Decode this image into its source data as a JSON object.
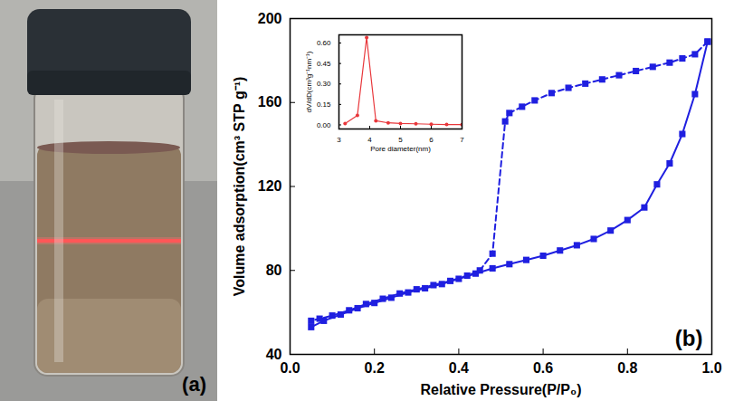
{
  "photo": {
    "label": "(a)"
  },
  "chart_data": [
    {
      "type": "line",
      "annotation": "(b)",
      "x_label": "Relative Pressure(P/P₀)",
      "y_label": "Volume adsorption(cm³ STP g⁻¹)",
      "xlim": [
        0,
        1
      ],
      "xticks": [
        {
          "value": 0,
          "label": "0.0"
        },
        0.2,
        0.4,
        0.6,
        0.8,
        {
          "value": 1,
          "label": "1.0"
        }
      ],
      "ylim": [
        40,
        200
      ],
      "yticks": [
        40,
        80,
        120,
        160,
        200
      ],
      "marker": "square",
      "series": [
        {
          "color": "#1f1fe0",
          "line_style": "solid",
          "x": [
            0.05,
            0.08,
            0.12,
            0.16,
            0.2,
            0.24,
            0.28,
            0.32,
            0.36,
            0.4,
            0.44,
            0.48,
            0.52,
            0.56,
            0.6,
            0.64,
            0.68,
            0.72,
            0.76,
            0.8,
            0.84,
            0.87,
            0.9,
            0.93,
            0.96,
            0.99
          ],
          "values": [
            53,
            56,
            59,
            62,
            64.5,
            67,
            69.5,
            71.5,
            73.5,
            76,
            78.5,
            81,
            83,
            85,
            87,
            89.5,
            92,
            95,
            99,
            104,
            110,
            121,
            131,
            145,
            164,
            189
          ]
        },
        {
          "color": "#1f1fe0",
          "line_style": "dashed",
          "x": [
            0.99,
            0.96,
            0.93,
            0.9,
            0.86,
            0.82,
            0.78,
            0.74,
            0.7,
            0.66,
            0.62,
            0.58,
            0.55,
            0.52,
            0.51,
            0.48,
            0.45,
            0.42,
            0.38,
            0.34,
            0.3,
            0.26,
            0.22,
            0.18,
            0.14,
            0.1,
            0.07,
            0.05
          ],
          "values": [
            189,
            183,
            181,
            179,
            177,
            175,
            173,
            171,
            169,
            167,
            164.5,
            161,
            158,
            155,
            151,
            88,
            80,
            77.5,
            75,
            73,
            71,
            69,
            66.5,
            64,
            61,
            58.5,
            57,
            56
          ]
        }
      ]
    },
    {
      "type": "line",
      "x_label": "Pore diameter(nm)",
      "y_label": "dV/dD(cm³g⁻¹nm⁻¹)",
      "xlim": [
        3,
        7
      ],
      "xticks": [
        3,
        4,
        5,
        6,
        7
      ],
      "ylim": [
        -0.03,
        0.66
      ],
      "yticks": [
        {
          "value": 0,
          "label": "0.00"
        },
        {
          "value": 0.15,
          "label": "0.15"
        },
        {
          "value": 0.3,
          "label": "0.30"
        },
        {
          "value": 0.45,
          "label": "0.45"
        },
        {
          "value": 0.6,
          "label": "0.60"
        }
      ],
      "marker": "dot",
      "series": [
        {
          "color": "#e8373b",
          "line_style": "solid",
          "x": [
            3.2,
            3.6,
            3.9,
            4.2,
            4.6,
            5.0,
            5.5,
            6.0,
            6.5,
            7.0
          ],
          "values": [
            0.01,
            0.07,
            0.64,
            0.03,
            0.015,
            0.01,
            0.008,
            0.005,
            0.003,
            0.002
          ]
        }
      ]
    }
  ]
}
